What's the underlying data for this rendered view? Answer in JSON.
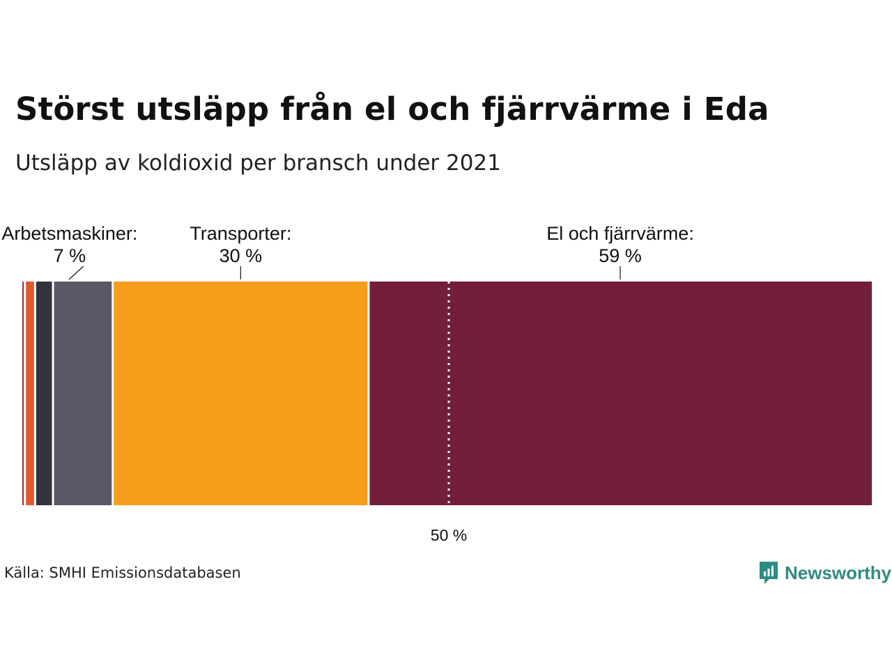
{
  "title": "Störst utsläpp från el och fjärrvärme i Eda",
  "subtitle": "Utsläpp av koldioxid per bransch under 2021",
  "source": "Källa: SMHI Emissionsdatabasen",
  "brand": {
    "name": "Newsworthy",
    "color": "#2e8b84",
    "icon": "newsworthy-logo-icon"
  },
  "chart_data": {
    "type": "bar",
    "orientation": "horizontal-stacked",
    "unit": "%",
    "segments": [
      {
        "value": 0.3,
        "color": "#8c3a3a"
      },
      {
        "value": 1.2,
        "color": "#e05a2b"
      },
      {
        "value": 2.1,
        "color": "#33333d"
      },
      {
        "value": 7,
        "color": "#5a5866",
        "label": "Arbetsmaskiner:",
        "value_label": "7 %",
        "leader": "diagonal"
      },
      {
        "value": 30,
        "color": "#f59e1b",
        "label": "Transporter:",
        "value_label": "30 %",
        "leader": "vertical"
      },
      {
        "value": 59,
        "color": "#721e3c",
        "label": "El och fjärrvärme:",
        "value_label": "59 %",
        "leader": "vertical"
      }
    ],
    "reference_line": {
      "value": 50,
      "label": "50 %",
      "style": "dotted"
    },
    "xlim": [
      0,
      100
    ],
    "grid": false,
    "legend": "none"
  }
}
